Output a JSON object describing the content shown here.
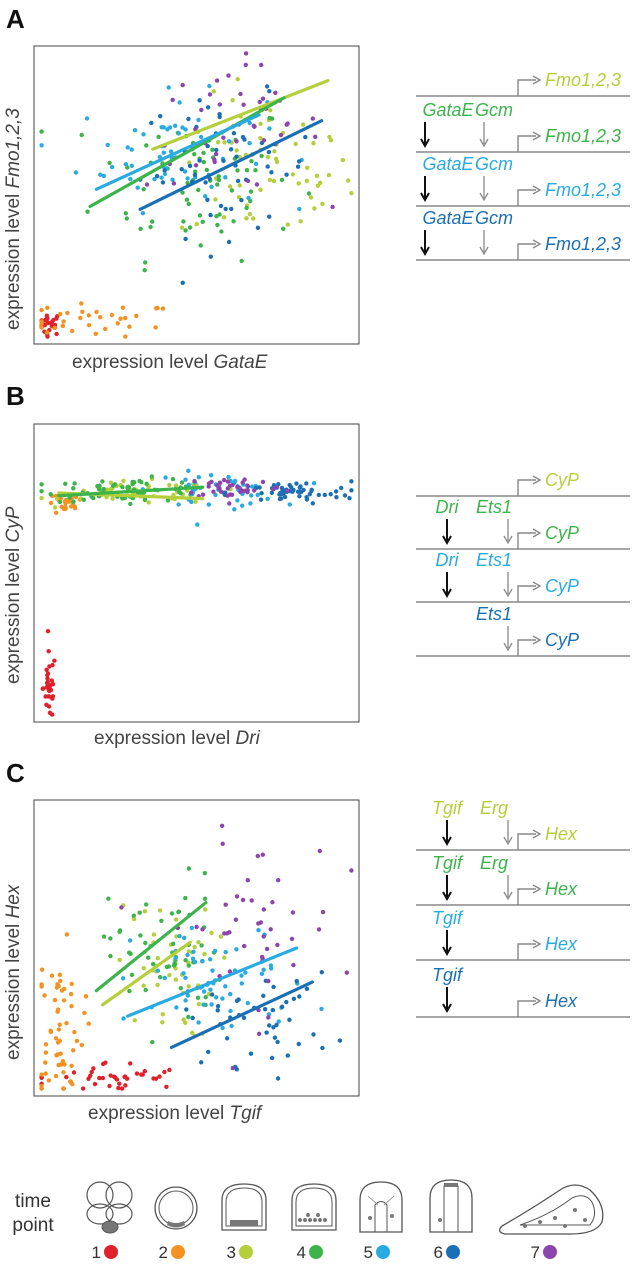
{
  "colors": {
    "tp1": "#e0202a",
    "tp2": "#f39220",
    "tp3": "#b5cf3a",
    "tp4": "#3cb44b",
    "tp5": "#29abe2",
    "tp6": "#1a6fb5",
    "tp7": "#8e44ad",
    "gray": "#888888",
    "black": "#111111"
  },
  "panels": [
    {
      "letter": "A",
      "xlabel_prefix": "expression level ",
      "xlabel_gene": "GataE",
      "ylabel_prefix": "expression level ",
      "ylabel_gene": "Fmo1,2,3",
      "network": [
        {
          "color": "tp3",
          "regs": [],
          "target": "Fmo1,2,3"
        },
        {
          "color": "tp4",
          "regs": [
            {
              "name": "GataE",
              "arrow": "black"
            },
            {
              "name": "Gcm",
              "arrow": "gray"
            }
          ],
          "target": "Fmo1,2,3"
        },
        {
          "color": "tp5",
          "regs": [
            {
              "name": "GataE",
              "arrow": "black"
            },
            {
              "name": "Gcm",
              "arrow": "gray"
            }
          ],
          "target": "Fmo1,2,3"
        },
        {
          "color": "tp6",
          "regs": [
            {
              "name": "GataE",
              "arrow": "black"
            },
            {
              "name": "Gcm",
              "arrow": "gray"
            }
          ],
          "target": "Fmo1,2,3"
        }
      ]
    },
    {
      "letter": "B",
      "xlabel_prefix": "expression level ",
      "xlabel_gene": "Dri",
      "ylabel_prefix": "expression level ",
      "ylabel_gene": "CyP",
      "network": [
        {
          "color": "tp3",
          "regs": [],
          "target": "CyP"
        },
        {
          "color": "tp4",
          "regs": [
            {
              "name": "Dri",
              "arrow": "black"
            },
            {
              "name": "Ets1",
              "arrow": "gray"
            }
          ],
          "target": "CyP"
        },
        {
          "color": "tp5",
          "regs": [
            {
              "name": "Dri",
              "arrow": "black"
            },
            {
              "name": "Ets1",
              "arrow": "gray"
            }
          ],
          "target": "CyP"
        },
        {
          "color": "tp6",
          "regs": [
            {
              "name": "",
              "arrow": "none"
            },
            {
              "name": "Ets1",
              "arrow": "gray"
            }
          ],
          "target": "CyP"
        }
      ]
    },
    {
      "letter": "C",
      "xlabel_prefix": "expression level ",
      "xlabel_gene": "Tgif",
      "ylabel_prefix": "expression level ",
      "ylabel_gene": "Hex",
      "network": [
        {
          "color": "tp3",
          "regs": [
            {
              "name": "Tgif",
              "arrow": "black"
            },
            {
              "name": "Erg",
              "arrow": "gray"
            }
          ],
          "target": "Hex"
        },
        {
          "color": "tp4",
          "regs": [
            {
              "name": "Tgif",
              "arrow": "black"
            },
            {
              "name": "Erg",
              "arrow": "gray"
            }
          ],
          "target": "Hex"
        },
        {
          "color": "tp5",
          "regs": [
            {
              "name": "Tgif",
              "arrow": "black"
            }
          ],
          "target": "Hex"
        },
        {
          "color": "tp6",
          "regs": [
            {
              "name": "Tgif",
              "arrow": "black"
            }
          ],
          "target": "Hex"
        }
      ]
    }
  ],
  "timepoints": {
    "label": "time\npoint",
    "items": [
      {
        "num": "1",
        "color": "tp1"
      },
      {
        "num": "2",
        "color": "tp2"
      },
      {
        "num": "3",
        "color": "tp3"
      },
      {
        "num": "4",
        "color": "tp4"
      },
      {
        "num": "5",
        "color": "tp5"
      },
      {
        "num": "6",
        "color": "tp6"
      },
      {
        "num": "7",
        "color": "tp7"
      }
    ]
  },
  "chart_data": [
    {
      "type": "scatter",
      "title": "",
      "xlabel": "expression level GataE",
      "ylabel": "expression level Fmo1,2,3",
      "xlim": [
        0,
        1
      ],
      "ylim": [
        0,
        1
      ],
      "grid": false,
      "series": [
        {
          "color": "tp1",
          "cluster": {
            "cx": 0.03,
            "cy": 0.05,
            "sx": 0.02,
            "sy": 0.02,
            "n": 25
          }
        },
        {
          "color": "tp2",
          "cluster": {
            "cx": 0.18,
            "cy": 0.06,
            "sx": 0.13,
            "sy": 0.03,
            "n": 35
          }
        },
        {
          "color": "tp3",
          "cluster": {
            "cx": 0.72,
            "cy": 0.58,
            "sx": 0.14,
            "sy": 0.13,
            "n": 60
          },
          "fit": [
            [
              0.36,
              0.66
            ],
            [
              0.92,
              0.9
            ]
          ]
        },
        {
          "color": "tp4",
          "cluster": {
            "cx": 0.5,
            "cy": 0.56,
            "sx": 0.16,
            "sy": 0.14,
            "n": 70
          },
          "fit": [
            [
              0.16,
              0.46
            ],
            [
              0.78,
              0.84
            ]
          ]
        },
        {
          "color": "tp5",
          "cluster": {
            "cx": 0.42,
            "cy": 0.65,
            "sx": 0.15,
            "sy": 0.1,
            "n": 60
          },
          "fit": [
            [
              0.18,
              0.52
            ],
            [
              0.7,
              0.78
            ]
          ]
        },
        {
          "color": "tp6",
          "cluster": {
            "cx": 0.6,
            "cy": 0.6,
            "sx": 0.14,
            "sy": 0.12,
            "n": 55
          },
          "fit": [
            [
              0.32,
              0.45
            ],
            [
              0.9,
              0.76
            ]
          ]
        },
        {
          "color": "tp7",
          "cluster": {
            "cx": 0.62,
            "cy": 0.74,
            "sx": 0.14,
            "sy": 0.11,
            "n": 45
          }
        }
      ]
    },
    {
      "type": "scatter",
      "title": "",
      "xlabel": "expression level Dri",
      "ylabel": "expression level CyP",
      "xlim": [
        0,
        1
      ],
      "ylim": [
        0,
        1
      ],
      "grid": false,
      "series": [
        {
          "color": "tp1",
          "cluster": {
            "cx": 0.03,
            "cy": 0.1,
            "sx": 0.01,
            "sy": 0.06,
            "n": 35
          }
        },
        {
          "color": "tp2",
          "cluster": {
            "cx": 0.08,
            "cy": 0.74,
            "sx": 0.03,
            "sy": 0.02,
            "n": 25
          }
        },
        {
          "color": "tp3",
          "cluster": {
            "cx": 0.32,
            "cy": 0.78,
            "sx": 0.12,
            "sy": 0.02,
            "n": 50
          },
          "fit": [
            [
              0.06,
              0.78
            ],
            [
              0.52,
              0.76
            ]
          ]
        },
        {
          "color": "tp4",
          "cluster": {
            "cx": 0.28,
            "cy": 0.79,
            "sx": 0.13,
            "sy": 0.02,
            "n": 60
          },
          "fit": [
            [
              0.06,
              0.77
            ],
            [
              0.52,
              0.8
            ]
          ]
        },
        {
          "color": "tp5",
          "cluster": {
            "cx": 0.56,
            "cy": 0.79,
            "sx": 0.1,
            "sy": 0.03,
            "n": 45
          }
        },
        {
          "color": "tp6",
          "cluster": {
            "cx": 0.8,
            "cy": 0.78,
            "sx": 0.1,
            "sy": 0.02,
            "n": 55
          }
        },
        {
          "color": "tp7",
          "cluster": {
            "cx": 0.62,
            "cy": 0.8,
            "sx": 0.08,
            "sy": 0.02,
            "n": 40
          }
        }
      ]
    },
    {
      "type": "scatter",
      "title": "",
      "xlabel": "expression level Tgif",
      "ylabel": "expression level Hex",
      "xlim": [
        0,
        1
      ],
      "ylim": [
        0,
        1
      ],
      "grid": false,
      "series": [
        {
          "color": "tp1",
          "cluster": {
            "cx": 0.22,
            "cy": 0.04,
            "sx": 0.12,
            "sy": 0.03,
            "n": 40
          }
        },
        {
          "color": "tp2",
          "cluster": {
            "cx": 0.06,
            "cy": 0.22,
            "sx": 0.04,
            "sy": 0.14,
            "n": 60
          }
        },
        {
          "color": "tp3",
          "cluster": {
            "cx": 0.4,
            "cy": 0.42,
            "sx": 0.08,
            "sy": 0.12,
            "n": 45
          },
          "fit": [
            [
              0.2,
              0.3
            ],
            [
              0.48,
              0.52
            ]
          ]
        },
        {
          "color": "tp4",
          "cluster": {
            "cx": 0.4,
            "cy": 0.48,
            "sx": 0.09,
            "sy": 0.14,
            "n": 55
          },
          "fit": [
            [
              0.18,
              0.35
            ],
            [
              0.53,
              0.66
            ]
          ]
        },
        {
          "color": "tp5",
          "cluster": {
            "cx": 0.58,
            "cy": 0.38,
            "sx": 0.14,
            "sy": 0.1,
            "n": 60
          },
          "fit": [
            [
              0.28,
              0.26
            ],
            [
              0.82,
              0.5
            ]
          ]
        },
        {
          "color": "tp6",
          "cluster": {
            "cx": 0.7,
            "cy": 0.25,
            "sx": 0.12,
            "sy": 0.08,
            "n": 45
          },
          "fit": [
            [
              0.42,
              0.15
            ],
            [
              0.87,
              0.38
            ]
          ]
        },
        {
          "color": "tp7",
          "cluster": {
            "cx": 0.68,
            "cy": 0.58,
            "sx": 0.14,
            "sy": 0.16,
            "n": 45
          }
        }
      ]
    }
  ]
}
